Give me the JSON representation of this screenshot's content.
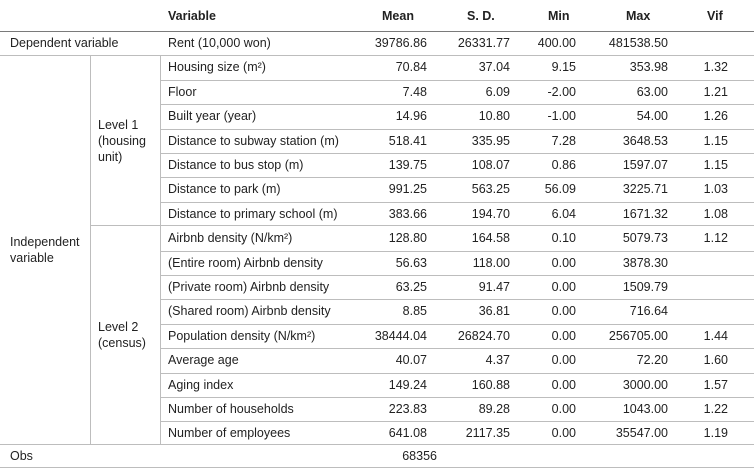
{
  "headers": {
    "variable": "Variable",
    "mean": "Mean",
    "sd": "S. D.",
    "min": "Min",
    "max": "Max",
    "vif": "Vif"
  },
  "dependent": {
    "label": "Dependent variable",
    "row": {
      "name": "Rent (10,000 won)",
      "mean": "39786.86",
      "sd": "26331.77",
      "min": "400.00",
      "max": "481538.50",
      "vif": ""
    }
  },
  "independent_label": "Independent variable",
  "level1_label": "Level 1 (housing unit)",
  "level2_label": "Level 2 (census)",
  "level1_rows": [
    {
      "name": "Housing size (m²)",
      "mean": "70.84",
      "sd": "37.04",
      "min": "9.15",
      "max": "353.98",
      "vif": "1.32"
    },
    {
      "name": "Floor",
      "mean": "7.48",
      "sd": "6.09",
      "min": "-2.00",
      "max": "63.00",
      "vif": "1.21"
    },
    {
      "name": "Built year (year)",
      "mean": "14.96",
      "sd": "10.80",
      "min": "-1.00",
      "max": "54.00",
      "vif": "1.26"
    },
    {
      "name": "Distance to subway station (m)",
      "mean": "518.41",
      "sd": "335.95",
      "min": "7.28",
      "max": "3648.53",
      "vif": "1.15"
    },
    {
      "name": "Distance to bus stop (m)",
      "mean": "139.75",
      "sd": "108.07",
      "min": "0.86",
      "max": "1597.07",
      "vif": "1.15"
    },
    {
      "name": "Distance to park (m)",
      "mean": "991.25",
      "sd": "563.25",
      "min": "56.09",
      "max": "3225.71",
      "vif": "1.03"
    },
    {
      "name": "Distance to primary school (m)",
      "mean": "383.66",
      "sd": "194.70",
      "min": "6.04",
      "max": "1671.32",
      "vif": "1.08"
    }
  ],
  "level2_rows": [
    {
      "name": "Airbnb density (N/km²)",
      "mean": "128.80",
      "sd": "164.58",
      "min": "0.10",
      "max": "5079.73",
      "vif": "1.12"
    },
    {
      "name": "(Entire room) Airbnb density",
      "mean": "56.63",
      "sd": "118.00",
      "min": "0.00",
      "max": "3878.30",
      "vif": ""
    },
    {
      "name": "(Private room) Airbnb density",
      "mean": "63.25",
      "sd": "91.47",
      "min": "0.00",
      "max": "1509.79",
      "vif": ""
    },
    {
      "name": "(Shared room) Airbnb density",
      "mean": "8.85",
      "sd": "36.81",
      "min": "0.00",
      "max": "716.64",
      "vif": ""
    },
    {
      "name": "Population density (N/km²)",
      "mean": "38444.04",
      "sd": "26824.70",
      "min": "0.00",
      "max": "256705.00",
      "vif": "1.44"
    },
    {
      "name": "Average age",
      "mean": "40.07",
      "sd": "4.37",
      "min": "0.00",
      "max": "72.20",
      "vif": "1.60"
    },
    {
      "name": "Aging index",
      "mean": "149.24",
      "sd": "160.88",
      "min": "0.00",
      "max": "3000.00",
      "vif": "1.57"
    },
    {
      "name": "Number of households",
      "mean": "223.83",
      "sd": "89.28",
      "min": "0.00",
      "max": "1043.00",
      "vif": "1.22"
    },
    {
      "name": "Number of employees",
      "mean": "641.08",
      "sd": "2117.35",
      "min": "0.00",
      "max": "35547.00",
      "vif": "1.19"
    }
  ],
  "obs": {
    "label": "Obs",
    "value": "68356"
  }
}
